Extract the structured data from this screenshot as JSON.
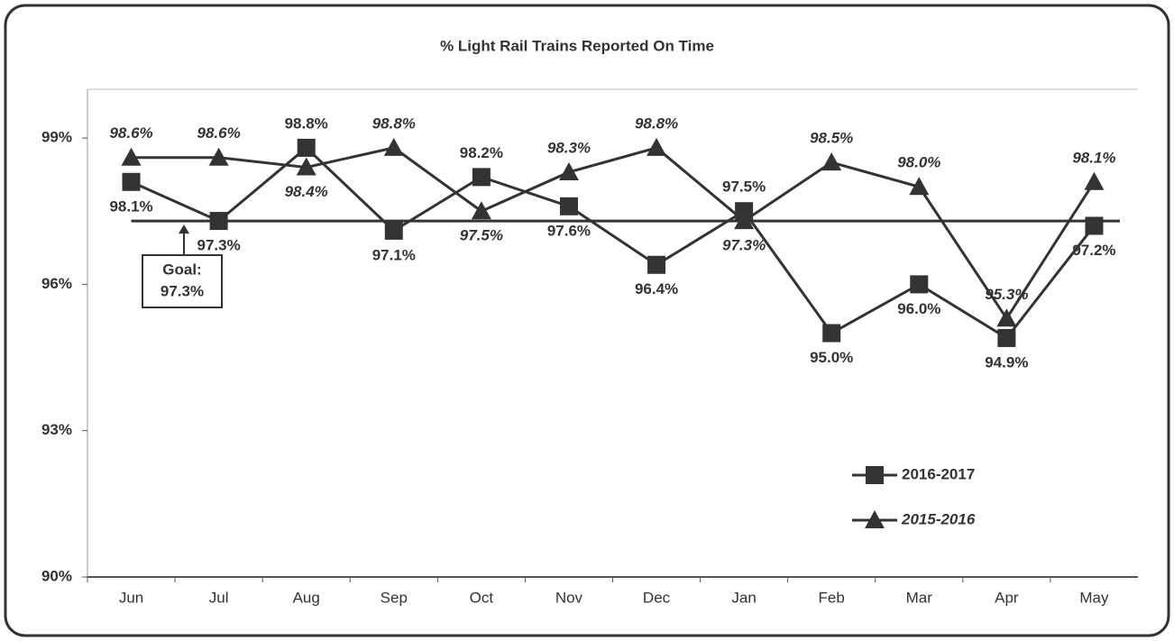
{
  "chart_data": {
    "type": "line",
    "title": "% Light Rail Trains Reported On Time",
    "categories": [
      "Jun",
      "Jul",
      "Aug",
      "Sep",
      "Oct",
      "Nov",
      "Dec",
      "Jan",
      "Feb",
      "Mar",
      "Apr",
      "May"
    ],
    "series": [
      {
        "name": "2016-2017",
        "color": "#333333",
        "marker": "square",
        "values": [
          98.1,
          97.3,
          98.8,
          97.1,
          98.2,
          97.6,
          96.4,
          97.5,
          95.0,
          96.0,
          94.9,
          97.2
        ],
        "value_labels": [
          "98.1%",
          "97.3%",
          "98.8%",
          "97.1%",
          "98.2%",
          "97.6%",
          "96.4%",
          "97.5%",
          "95.0%",
          "96.0%",
          "94.9%",
          "97.2%"
        ]
      },
      {
        "name": "2015-2016",
        "color": "#333333",
        "marker": "triangle",
        "values": [
          98.6,
          98.6,
          98.4,
          98.8,
          97.5,
          98.3,
          98.8,
          97.3,
          98.5,
          98.0,
          95.3,
          98.1
        ],
        "value_labels": [
          "98.6%",
          "98.6%",
          "98.4%",
          "98.8%",
          "97.5%",
          "98.3%",
          "98.8%",
          "97.3%",
          "98.5%",
          "98.0%",
          "95.3%",
          "98.1%"
        ]
      }
    ],
    "goal": {
      "value": 97.3,
      "label": [
        "Goal:",
        "97.3%"
      ]
    },
    "ylim": [
      90,
      100
    ],
    "yticks": [
      {
        "value": 90,
        "label": "90%"
      },
      {
        "value": 93,
        "label": "93%"
      },
      {
        "value": 96,
        "label": "96%"
      },
      {
        "value": 99,
        "label": "99%"
      }
    ],
    "legend": "lower right"
  }
}
